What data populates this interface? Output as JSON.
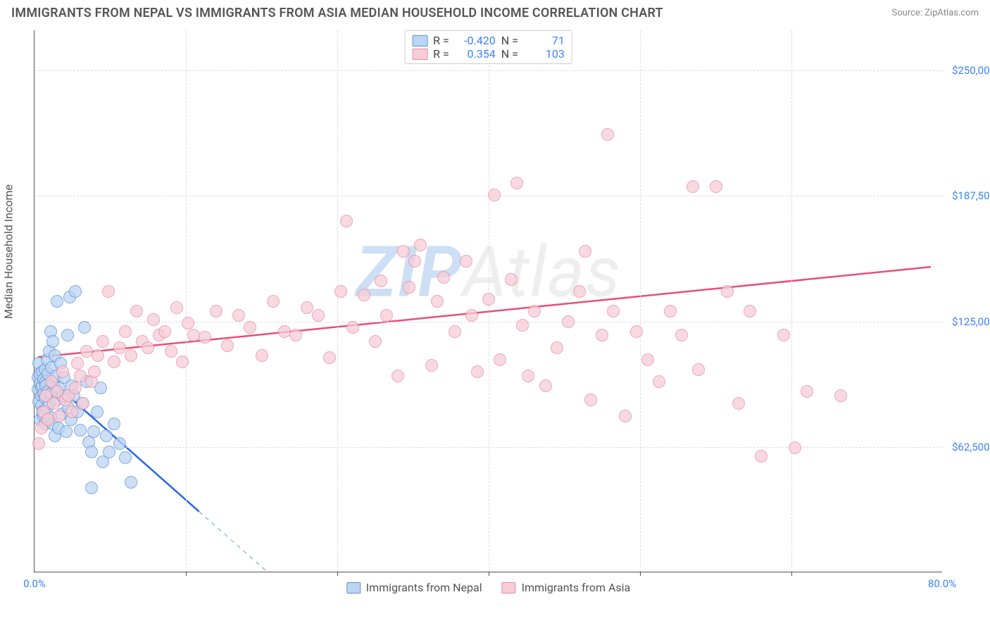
{
  "title": "IMMIGRANTS FROM NEPAL VS IMMIGRANTS FROM ASIA MEDIAN HOUSEHOLD INCOME CORRELATION CHART",
  "source": "Source: ZipAtlas.com",
  "y_axis_label": "Median Household Income",
  "watermark_a": "ZIP",
  "watermark_b": "Atlas",
  "chart": {
    "type": "scatter",
    "xlim": [
      0,
      80
    ],
    "ylim": [
      0,
      270000
    ],
    "xtick_left": "0.0%",
    "xtick_right": "80.0%",
    "yticks": [
      {
        "v": 62500,
        "label": "$62,500"
      },
      {
        "v": 125000,
        "label": "$125,000"
      },
      {
        "v": 187500,
        "label": "$187,500"
      },
      {
        "v": 250000,
        "label": "$250,000"
      }
    ],
    "vgrid": [
      13.33,
      26.67,
      40,
      53.33,
      66.67
    ],
    "background_color": "#ffffff",
    "grid_color": "#dddddd",
    "axis_color": "#555555",
    "tick_text_color": "#3b82f6",
    "point_radius": 9,
    "line_width": 2.5,
    "series": [
      {
        "key": "nepal",
        "label": "Immigrants from Nepal",
        "fill": "#bcd5f2",
        "stroke": "#5b8fd6",
        "line_color": "#2563eb",
        "dash_color": "#9bb8e6",
        "R": "-0.420",
        "N": "71",
        "trend": {
          "x1": 0.3,
          "y1": 101000,
          "x2": 14.5,
          "y2": 30000
        },
        "trend_dash": {
          "x1": 14.5,
          "y1": 30000,
          "x2": 28.5,
          "y2": -40000
        },
        "points": [
          [
            0.3,
            97000
          ],
          [
            0.3,
            91000
          ],
          [
            0.4,
            104000
          ],
          [
            0.4,
            85000
          ],
          [
            0.5,
            94000
          ],
          [
            0.5,
            99000
          ],
          [
            0.5,
            76000
          ],
          [
            0.6,
            88000
          ],
          [
            0.6,
            92000
          ],
          [
            0.6,
            83000
          ],
          [
            0.7,
            100000
          ],
          [
            0.7,
            80000
          ],
          [
            0.7,
            93000
          ],
          [
            0.8,
            96000
          ],
          [
            0.8,
            78000
          ],
          [
            0.8,
            89000
          ],
          [
            0.9,
            87000
          ],
          [
            0.9,
            101000
          ],
          [
            0.9,
            74000
          ],
          [
            1.0,
            95000
          ],
          [
            1.0,
            93000
          ],
          [
            1.1,
            106000
          ],
          [
            1.1,
            82000
          ],
          [
            1.2,
            99000
          ],
          [
            1.2,
            90000
          ],
          [
            1.3,
            110000
          ],
          [
            1.3,
            84000
          ],
          [
            1.4,
            120000
          ],
          [
            1.4,
            77000
          ],
          [
            1.5,
            102000
          ],
          [
            1.5,
            89000
          ],
          [
            1.6,
            115000
          ],
          [
            1.6,
            74000
          ],
          [
            1.7,
            94000
          ],
          [
            1.8,
            108000
          ],
          [
            1.8,
            68000
          ],
          [
            1.9,
            98000
          ],
          [
            2.0,
            86000
          ],
          [
            2.0,
            135000
          ],
          [
            2.1,
            72000
          ],
          [
            2.2,
            92000
          ],
          [
            2.3,
            104000
          ],
          [
            2.4,
            79000
          ],
          [
            2.5,
            88000
          ],
          [
            2.6,
            97000
          ],
          [
            2.8,
            70000
          ],
          [
            2.9,
            118000
          ],
          [
            3.0,
            82000
          ],
          [
            3.1,
            137000
          ],
          [
            3.2,
            76000
          ],
          [
            3.3,
            93000
          ],
          [
            3.5,
            88000
          ],
          [
            3.6,
            140000
          ],
          [
            3.8,
            80000
          ],
          [
            4.0,
            71000
          ],
          [
            4.2,
            84000
          ],
          [
            4.4,
            122000
          ],
          [
            4.6,
            95000
          ],
          [
            4.8,
            65000
          ],
          [
            5.0,
            60000
          ],
          [
            5.2,
            70000
          ],
          [
            5.5,
            80000
          ],
          [
            5.8,
            92000
          ],
          [
            6.0,
            55000
          ],
          [
            6.3,
            68000
          ],
          [
            6.6,
            60000
          ],
          [
            7.0,
            74000
          ],
          [
            7.5,
            64000
          ],
          [
            8.0,
            57000
          ],
          [
            8.5,
            45000
          ],
          [
            5.0,
            42000
          ]
        ]
      },
      {
        "key": "asia",
        "label": "Immigrants from Asia",
        "fill": "#f7cdd7",
        "stroke": "#e58aa0",
        "line_color": "#e94d78",
        "R": "0.354",
        "N": "103",
        "trend": {
          "x1": 0.3,
          "y1": 107000,
          "x2": 79,
          "y2": 152000
        },
        "points": [
          [
            0.4,
            64000
          ],
          [
            0.6,
            72000
          ],
          [
            0.8,
            80000
          ],
          [
            1.0,
            88000
          ],
          [
            1.2,
            76000
          ],
          [
            1.5,
            95000
          ],
          [
            1.7,
            84000
          ],
          [
            2.0,
            90000
          ],
          [
            2.2,
            78000
          ],
          [
            2.5,
            100000
          ],
          [
            2.7,
            86000
          ],
          [
            3.0,
            88000
          ],
          [
            3.3,
            80000
          ],
          [
            3.6,
            92000
          ],
          [
            3.8,
            104000
          ],
          [
            4.0,
            98000
          ],
          [
            4.3,
            84000
          ],
          [
            4.6,
            110000
          ],
          [
            5.0,
            95000
          ],
          [
            5.3,
            100000
          ],
          [
            5.6,
            108000
          ],
          [
            6.0,
            115000
          ],
          [
            6.5,
            140000
          ],
          [
            7.0,
            105000
          ],
          [
            7.5,
            112000
          ],
          [
            8.0,
            120000
          ],
          [
            8.5,
            108000
          ],
          [
            9.0,
            130000
          ],
          [
            9.5,
            115000
          ],
          [
            10.0,
            112000
          ],
          [
            10.5,
            126000
          ],
          [
            11.0,
            118000
          ],
          [
            11.5,
            120000
          ],
          [
            12.0,
            110000
          ],
          [
            12.5,
            132000
          ],
          [
            13.0,
            105000
          ],
          [
            13.5,
            124000
          ],
          [
            14.0,
            118000
          ],
          [
            15.0,
            117000
          ],
          [
            16.0,
            130000
          ],
          [
            17.0,
            113000
          ],
          [
            18.0,
            128000
          ],
          [
            19.0,
            122000
          ],
          [
            20.0,
            108000
          ],
          [
            21.0,
            135000
          ],
          [
            22.0,
            120000
          ],
          [
            23.0,
            118000
          ],
          [
            24.0,
            132000
          ],
          [
            25.0,
            128000
          ],
          [
            26.0,
            107000
          ],
          [
            27.0,
            140000
          ],
          [
            27.5,
            175000
          ],
          [
            28.0,
            122000
          ],
          [
            29.0,
            138000
          ],
          [
            30.0,
            115000
          ],
          [
            30.5,
            145000
          ],
          [
            31.0,
            128000
          ],
          [
            32.0,
            98000
          ],
          [
            32.5,
            160000
          ],
          [
            33.0,
            142000
          ],
          [
            33.5,
            155000
          ],
          [
            34.0,
            163000
          ],
          [
            35.0,
            103000
          ],
          [
            35.5,
            135000
          ],
          [
            36.0,
            147000
          ],
          [
            37.0,
            120000
          ],
          [
            38.0,
            155000
          ],
          [
            38.5,
            128000
          ],
          [
            39.0,
            100000
          ],
          [
            40.0,
            136000
          ],
          [
            40.5,
            188000
          ],
          [
            41.0,
            106000
          ],
          [
            42.0,
            146000
          ],
          [
            42.5,
            194000
          ],
          [
            43.0,
            123000
          ],
          [
            43.5,
            98000
          ],
          [
            44.0,
            130000
          ],
          [
            45.0,
            93000
          ],
          [
            46.0,
            112000
          ],
          [
            47.0,
            125000
          ],
          [
            48.0,
            140000
          ],
          [
            48.5,
            160000
          ],
          [
            49.0,
            86000
          ],
          [
            50.0,
            118000
          ],
          [
            50.5,
            218000
          ],
          [
            51.0,
            130000
          ],
          [
            52.0,
            78000
          ],
          [
            53.0,
            120000
          ],
          [
            54.0,
            106000
          ],
          [
            55.0,
            95000
          ],
          [
            56.0,
            130000
          ],
          [
            57.0,
            118000
          ],
          [
            58.0,
            192000
          ],
          [
            58.5,
            101000
          ],
          [
            60.0,
            192000
          ],
          [
            61.0,
            140000
          ],
          [
            62.0,
            84000
          ],
          [
            63.0,
            130000
          ],
          [
            64.0,
            58000
          ],
          [
            66.0,
            118000
          ],
          [
            67.0,
            62000
          ],
          [
            68.0,
            90000
          ],
          [
            71.0,
            88000
          ]
        ]
      }
    ],
    "legend": {
      "r_label": "R =",
      "n_label": "N ="
    }
  }
}
